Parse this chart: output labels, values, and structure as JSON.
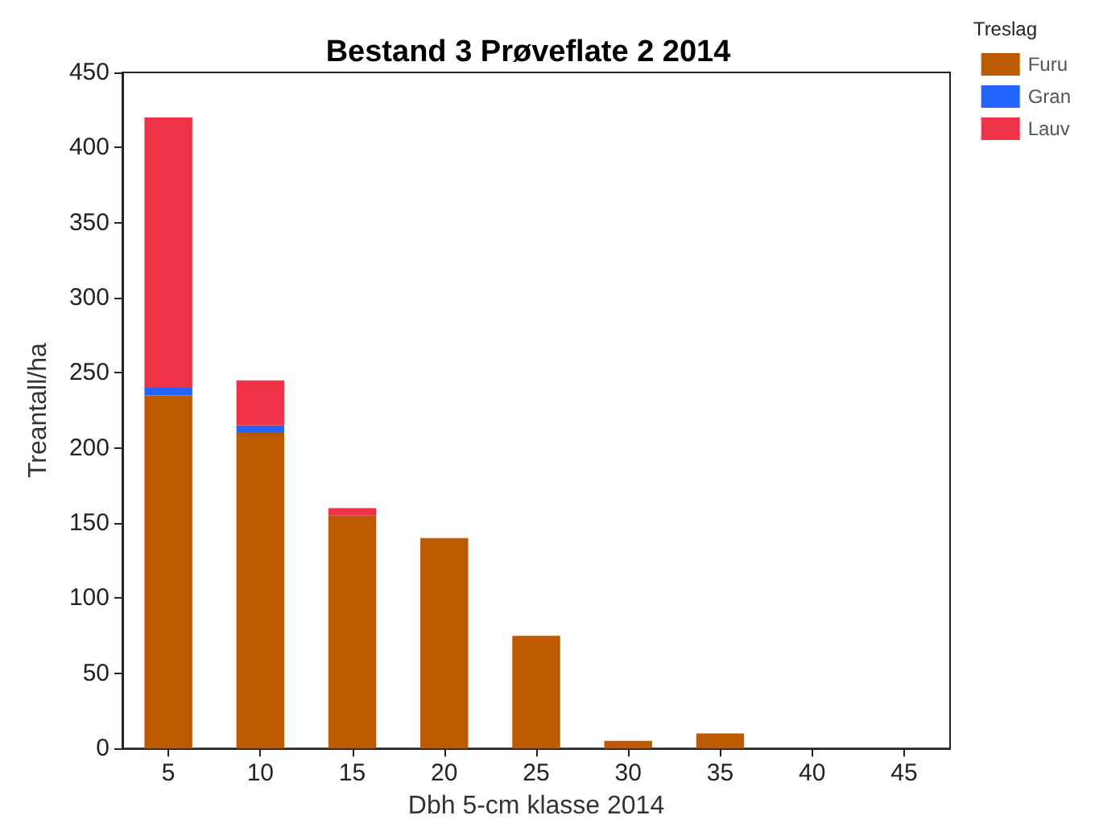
{
  "chart_data": {
    "type": "bar",
    "title": "Bestand 3 Prøveflate 2 2014",
    "xlabel": "Dbh 5-cm klasse 2014",
    "ylabel": "Treantall/ha",
    "legend_title": "Treslag",
    "categories": [
      "5",
      "10",
      "15",
      "20",
      "25",
      "30",
      "35",
      "40",
      "45"
    ],
    "series": [
      {
        "name": "Furu",
        "color": "#bb5a00",
        "values": [
          235,
          210,
          155,
          140,
          75,
          5,
          10,
          0,
          0
        ]
      },
      {
        "name": "Gran",
        "color": "#2464ff",
        "values": [
          5,
          5,
          0,
          0,
          0,
          0,
          0,
          0,
          0
        ]
      },
      {
        "name": "Lauv",
        "color": "#f03248",
        "values": [
          180,
          30,
          5,
          0,
          0,
          0,
          0,
          0,
          0
        ]
      }
    ],
    "stacked": true,
    "ylim": [
      0,
      450
    ],
    "yticks": [
      0,
      50,
      100,
      150,
      200,
      250,
      300,
      350,
      400,
      450
    ],
    "grid": false,
    "legend": "right"
  }
}
